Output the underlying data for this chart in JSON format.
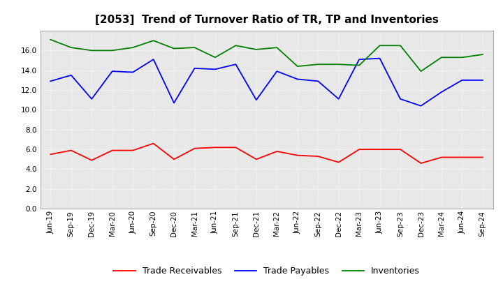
{
  "title": "[2053]  Trend of Turnover Ratio of TR, TP and Inventories",
  "labels": [
    "Jun-19",
    "Sep-19",
    "Dec-19",
    "Mar-20",
    "Jun-20",
    "Sep-20",
    "Dec-20",
    "Mar-21",
    "Jun-21",
    "Sep-21",
    "Dec-21",
    "Mar-22",
    "Jun-22",
    "Sep-22",
    "Dec-22",
    "Mar-23",
    "Jun-23",
    "Sep-23",
    "Dec-23",
    "Mar-24",
    "Jun-24",
    "Sep-24"
  ],
  "trade_receivables": [
    5.5,
    5.9,
    4.9,
    5.9,
    5.9,
    6.6,
    5.0,
    6.1,
    6.2,
    6.2,
    5.0,
    5.8,
    5.4,
    5.3,
    4.7,
    6.0,
    6.0,
    6.0,
    4.6,
    5.2,
    5.2,
    5.2
  ],
  "trade_payables": [
    12.9,
    13.5,
    11.1,
    13.9,
    13.8,
    15.1,
    10.7,
    14.2,
    14.1,
    14.6,
    11.0,
    13.9,
    13.1,
    12.9,
    11.1,
    15.1,
    15.2,
    11.1,
    10.4,
    11.8,
    13.0,
    13.0
  ],
  "inventories": [
    17.1,
    16.3,
    16.0,
    16.0,
    16.3,
    17.0,
    16.2,
    16.3,
    15.3,
    16.5,
    16.1,
    16.3,
    14.4,
    14.6,
    14.6,
    14.5,
    16.5,
    16.5,
    13.9,
    15.3,
    15.3,
    15.6
  ],
  "ylim": [
    0,
    18
  ],
  "yticks": [
    0.0,
    2.0,
    4.0,
    6.0,
    8.0,
    10.0,
    12.0,
    14.0,
    16.0
  ],
  "color_tr": "#ff0000",
  "color_tp": "#0000ff",
  "color_inv": "#008000",
  "legend_labels": [
    "Trade Receivables",
    "Trade Payables",
    "Inventories"
  ],
  "background_color": "#ffffff",
  "plot_bg_color": "#e8e8e8",
  "grid_color": "#ffffff",
  "title_fontsize": 11,
  "legend_fontsize": 9,
  "tick_fontsize": 7.5
}
